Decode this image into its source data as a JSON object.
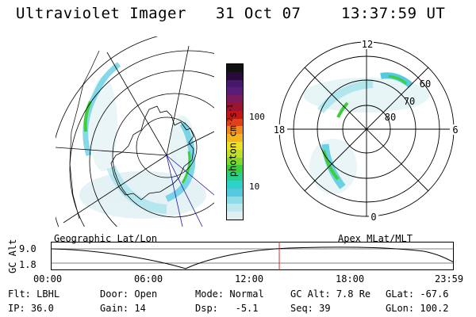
{
  "header": {
    "title": "Ultraviolet Imager",
    "date": "31 Oct 07",
    "time": "13:37:59 UT"
  },
  "colorbar": {
    "label": "photon cm",
    "label_sup1": "-2",
    "label_mid": "s",
    "label_sup2": "-1",
    "ticks": [
      "100",
      "10"
    ],
    "colors": [
      "#111111",
      "#2a0a3c",
      "#46186a",
      "#5b1b78",
      "#7a1b5b",
      "#9b1530",
      "#c41616",
      "#e0401a",
      "#f08a18",
      "#f2b61e",
      "#e9e226",
      "#bfe02a",
      "#7fd82c",
      "#3ccf3a",
      "#2ccf8a",
      "#2fd2c8",
      "#54c9e0",
      "#8ddce8",
      "#bfe8ee",
      "#dfeff0"
    ]
  },
  "left_panel": {
    "caption": "Geographic Lat/Lon"
  },
  "right_panel": {
    "caption": "Apex MLat/MLT",
    "mlt_labels": {
      "top": "12",
      "left": "18",
      "right": "6",
      "bottom": "0"
    },
    "lat_labels": [
      "60",
      "70",
      "80"
    ]
  },
  "altitude_plot": {
    "axis_label": "GC Alt",
    "y_ticks": [
      "9.0",
      "1.8"
    ],
    "x_ticks": [
      "00:00",
      "06:00",
      "12:00",
      "18:00",
      "23:59"
    ],
    "current_time_fraction": 0.567
  },
  "info": {
    "flt_label": "Flt:",
    "flt_value": "LBHL",
    "door_label": "Door:",
    "door_value": "Open",
    "mode_label": "Mode:",
    "mode_value": "Normal",
    "gcalt_label": "GC Alt:",
    "gcalt_value": "7.8 Re",
    "glat_label": "GLat:",
    "glat_value": "-67.6",
    "ip_label": "IP:",
    "ip_value": "36.0",
    "gain_label": "Gain:",
    "gain_value": "14",
    "dsp_label": "Dsp:",
    "dsp_value": "-5.1",
    "seq_label": "Seq:",
    "seq_value": "39",
    "glon_label": "GLon:",
    "glon_value": "100.2"
  },
  "colors": {
    "accent_line": "#d03030",
    "aurora_green": "#3ccf3a",
    "aurora_cyan": "#54c9e0",
    "grid_blue": "#1a1aa0"
  }
}
